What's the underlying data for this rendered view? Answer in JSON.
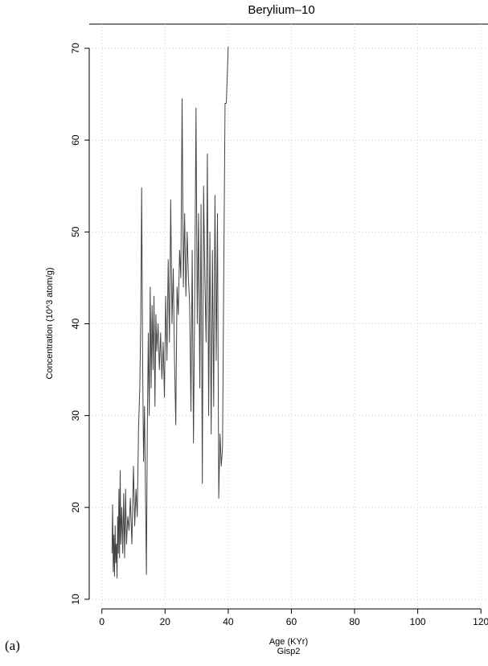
{
  "chart_data": {
    "type": "line",
    "title": "Berylium–10",
    "x_label": "Age (KYr)",
    "x_sublabel": "Gisp2",
    "y_label": "Concentration (10^3 atom/g)",
    "caption": "(a)",
    "xlim": [
      -4,
      122.5
    ],
    "ylim": [
      8.95,
      72.63
    ],
    "xticks": [
      0,
      20,
      40,
      60,
      80,
      100,
      120
    ],
    "yticks": [
      10,
      20,
      30,
      40,
      50,
      60,
      70
    ],
    "grid": true,
    "x": [
      3.2,
      3.4,
      3.6,
      3.8,
      4.0,
      4.2,
      4.4,
      4.6,
      4.8,
      5.0,
      5.2,
      5.4,
      5.6,
      5.8,
      6.0,
      6.3,
      6.6,
      6.9,
      7.2,
      7.5,
      7.8,
      8.2,
      8.6,
      9.0,
      9.5,
      10.0,
      10.4,
      10.8,
      11.2,
      11.6,
      12.0,
      12.3,
      12.6,
      12.9,
      13.2,
      13.5,
      13.8,
      14.1,
      14.4,
      14.7,
      15.0,
      15.3,
      15.6,
      15.9,
      16.2,
      16.5,
      16.8,
      17.1,
      17.4,
      17.8,
      18.2,
      18.6,
      19.0,
      19.4,
      19.8,
      20.2,
      20.6,
      21.0,
      21.4,
      21.8,
      22.2,
      22.6,
      23.0,
      23.4,
      23.8,
      24.2,
      24.6,
      25.0,
      25.4,
      25.8,
      26.2,
      26.6,
      27.0,
      27.4,
      27.8,
      28.2,
      28.6,
      29.0,
      29.4,
      29.8,
      30.2,
      30.6,
      31.0,
      31.4,
      31.8,
      32.2,
      32.6,
      33.0,
      33.4,
      33.8,
      34.2,
      34.6,
      35.0,
      35.4,
      35.8,
      36.2,
      36.6,
      37.0,
      37.4,
      37.8,
      38.2,
      38.6,
      39.0,
      39.4,
      40.0
    ],
    "series": [
      {
        "name": "Gisp2",
        "color": "#444444",
        "values": [
          15,
          20.3,
          13,
          17,
          12.5,
          18,
          14,
          16,
          12.3,
          19,
          15,
          22,
          14.5,
          24,
          16,
          20,
          15,
          21.5,
          14.5,
          22,
          16,
          19,
          17.5,
          21,
          16,
          24.5,
          18,
          22,
          19,
          28.5,
          33,
          40,
          54.8,
          36,
          25,
          31,
          22,
          12.7,
          29,
          39,
          30,
          44,
          33,
          42,
          35,
          43,
          31,
          41,
          37,
          40,
          35,
          39,
          34,
          38,
          32,
          43,
          36,
          47,
          38,
          53.5,
          40,
          46,
          36,
          29,
          44,
          41,
          48,
          45,
          64.5,
          44,
          52,
          43,
          50,
          45,
          42,
          30.5,
          48,
          27,
          43,
          63.5,
          40,
          52,
          33,
          53,
          22.6,
          55,
          45,
          38,
          58.5,
          30,
          50,
          28,
          48,
          31,
          54,
          36,
          52,
          21,
          28,
          24.5,
          26.5,
          46,
          64,
          64,
          70.2
        ]
      }
    ]
  }
}
